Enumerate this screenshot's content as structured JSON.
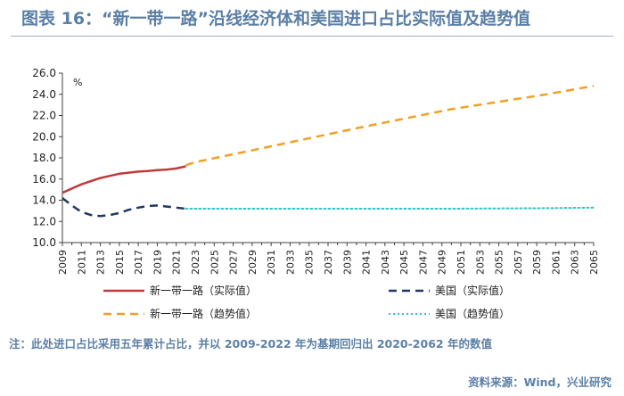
{
  "title": "图表 16：“新一带一路”沿线经济体和美国进口占比实际值及趋势值",
  "note": "注：此处进口占比采用五年累计占比，并以 2009-2022 年为基期回归出 2020-2062 年的数值",
  "source": "资料来源：Wind，兴业研究",
  "colors": {
    "title": "#5b7fa6",
    "brics_actual": "#c0393b",
    "us_actual": "#1f3864",
    "brics_trend": "#f0a023",
    "us_trend": "#2ec4c4",
    "axis": "#404040"
  },
  "chart_data": {
    "type": "line",
    "ylabel": "%",
    "ylim": [
      10.0,
      26.0
    ],
    "yticks": [
      "10.0",
      "12.0",
      "14.0",
      "16.0",
      "18.0",
      "20.0",
      "22.0",
      "24.0",
      "26.0"
    ],
    "xlim": [
      2009,
      2065
    ],
    "xticks": [
      "2009",
      "2011",
      "2013",
      "2015",
      "2017",
      "2019",
      "2021",
      "2023",
      "2025",
      "2027",
      "2029",
      "2031",
      "2033",
      "2035",
      "2037",
      "2039",
      "2041",
      "2043",
      "2045",
      "2047",
      "2049",
      "2051",
      "2053",
      "2055",
      "2057",
      "2059",
      "2061",
      "2063",
      "2065"
    ],
    "grid": false,
    "legend_position": "bottom",
    "series": [
      {
        "name": "新一带一路（实际值）",
        "style": "solid",
        "color": "#c0393b",
        "x": [
          2009,
          2010,
          2011,
          2012,
          2013,
          2014,
          2015,
          2016,
          2017,
          2018,
          2019,
          2020,
          2021,
          2022
        ],
        "y": [
          14.7,
          15.1,
          15.5,
          15.8,
          16.1,
          16.3,
          16.5,
          16.6,
          16.7,
          16.75,
          16.85,
          16.9,
          17.0,
          17.2
        ]
      },
      {
        "name": "美国（实际值）",
        "style": "dashed",
        "color": "#1f3864",
        "x": [
          2009,
          2010,
          2011,
          2012,
          2013,
          2014,
          2015,
          2016,
          2017,
          2018,
          2019,
          2020,
          2021,
          2022
        ],
        "y": [
          14.2,
          13.5,
          12.9,
          12.6,
          12.5,
          12.6,
          12.8,
          13.1,
          13.3,
          13.45,
          13.5,
          13.4,
          13.3,
          13.2
        ]
      },
      {
        "name": "新一带一路（趋势值）",
        "style": "dashed",
        "color": "#f0a023",
        "x": [
          2022,
          2023,
          2030,
          2040,
          2050,
          2060,
          2065
        ],
        "y": [
          17.3,
          17.6,
          18.9,
          20.8,
          22.6,
          24.0,
          24.8
        ]
      },
      {
        "name": "美国（趋势值）",
        "style": "dotted",
        "color": "#2ec4c4",
        "x": [
          2022,
          2030,
          2040,
          2050,
          2060,
          2065
        ],
        "y": [
          13.2,
          13.2,
          13.2,
          13.2,
          13.25,
          13.3
        ]
      }
    ]
  }
}
